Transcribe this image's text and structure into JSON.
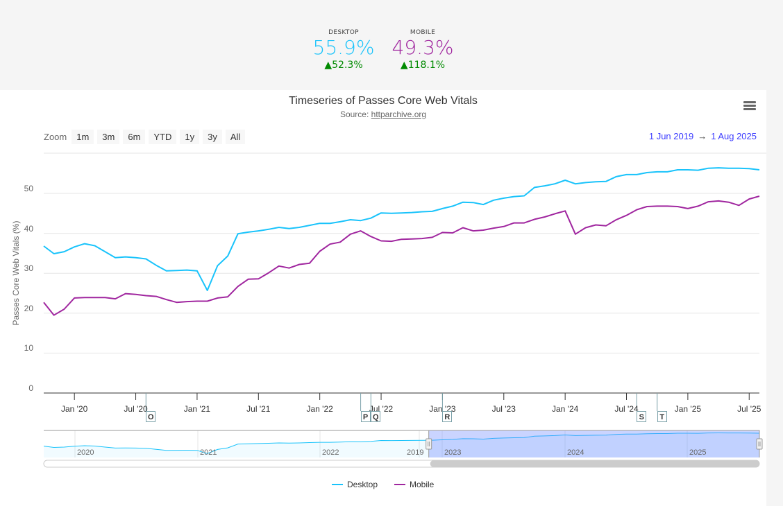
{
  "summary": {
    "desktop": {
      "label": "DESKTOP",
      "value": "55.9%",
      "change": "52.3%",
      "color": "#19c3fb"
    },
    "mobile": {
      "label": "MOBILE",
      "value": "49.3%",
      "change": "118.1%",
      "color": "#a0269f"
    },
    "change_icon": "triangle-up-icon",
    "change_color": "#008a00"
  },
  "toolbar": {
    "zoom_label": "Zoom",
    "buttons": [
      "1m",
      "3m",
      "6m",
      "YTD",
      "1y",
      "3y",
      "All"
    ],
    "range_from": "1 Jun 2019",
    "range_arrow": "→",
    "range_to": "1 Aug 2025",
    "menu_icon": "hamburger-menu-icon"
  },
  "chart_data": {
    "type": "line",
    "title": "Timeseries of Passes Core Web Vitals",
    "subtitle_prefix": "Source: ",
    "subtitle_link": "httparchive.org",
    "ylabel": "Passes Core Web Vitals (%)",
    "ylim": [
      0,
      60
    ],
    "yticks": [
      0,
      10,
      20,
      30,
      40,
      50
    ],
    "grid": true,
    "x_start": "2019-10",
    "x_end": "2025-08",
    "xticks": [
      {
        "label": "Jan '20",
        "date": "2020-01"
      },
      {
        "label": "Jul '20",
        "date": "2020-07"
      },
      {
        "label": "Jan '21",
        "date": "2021-01"
      },
      {
        "label": "Jul '21",
        "date": "2021-07"
      },
      {
        "label": "Jan '22",
        "date": "2022-01"
      },
      {
        "label": "Jul '22",
        "date": "2022-07"
      },
      {
        "label": "Jan '23",
        "date": "2023-01"
      },
      {
        "label": "Jul '23",
        "date": "2023-07"
      },
      {
        "label": "Jan '24",
        "date": "2024-01"
      },
      {
        "label": "Jul '24",
        "date": "2024-07"
      },
      {
        "label": "Jan '25",
        "date": "2025-01"
      },
      {
        "label": "Jul '25",
        "date": "2025-07"
      }
    ],
    "series": [
      {
        "name": "Desktop",
        "color": "#19c3fb",
        "values": [
          36.8,
          34.9,
          35.4,
          36.6,
          37.4,
          36.9,
          35.4,
          33.9,
          34.1,
          33.9,
          33.6,
          32.0,
          30.6,
          30.7,
          30.8,
          30.6,
          25.7,
          31.9,
          34.3,
          39.9,
          40.3,
          40.6,
          41.0,
          41.5,
          41.2,
          41.5,
          42.0,
          42.5,
          42.5,
          42.9,
          43.4,
          43.2,
          43.8,
          45.1,
          45.0,
          45.1,
          45.2,
          45.4,
          45.5,
          46.2,
          46.8,
          47.8,
          47.7,
          47.2,
          48.3,
          48.8,
          49.2,
          49.4,
          51.5,
          51.9,
          52.4,
          53.3,
          52.4,
          52.7,
          52.9,
          53.0,
          54.2,
          54.7,
          54.7,
          55.2,
          55.4,
          55.4,
          55.9,
          55.9,
          55.8,
          56.3,
          56.4,
          56.3,
          56.3,
          56.2,
          55.9
        ]
      },
      {
        "name": "Mobile",
        "color": "#a0269f",
        "values": [
          22.7,
          19.5,
          21.0,
          23.8,
          23.9,
          23.9,
          23.9,
          23.6,
          24.9,
          24.7,
          24.4,
          24.2,
          23.4,
          22.7,
          22.9,
          23.0,
          23.0,
          23.8,
          24.1,
          26.7,
          28.5,
          28.6,
          30.1,
          31.8,
          31.3,
          32.2,
          32.5,
          35.5,
          37.3,
          37.8,
          39.8,
          40.6,
          39.2,
          38.1,
          38.0,
          38.5,
          38.6,
          38.7,
          39.0,
          40.2,
          40.1,
          41.4,
          40.6,
          40.8,
          41.3,
          41.7,
          42.6,
          42.6,
          43.5,
          44.1,
          44.9,
          45.6,
          39.8,
          41.4,
          42.1,
          41.9,
          43.4,
          44.5,
          45.9,
          46.7,
          46.8,
          46.8,
          46.7,
          46.2,
          46.8,
          47.9,
          48.1,
          47.8,
          47.0,
          48.6,
          49.3
        ]
      }
    ],
    "flags": [
      {
        "label": "O",
        "date": "2020-08"
      },
      {
        "label": "P",
        "date": "2022-05"
      },
      {
        "label": "Q",
        "date": "2022-06"
      },
      {
        "label": "R",
        "date": "2023-01"
      },
      {
        "label": "S",
        "date": "2024-08"
      },
      {
        "label": "T",
        "date": "2024-10"
      }
    ],
    "navigator": {
      "labels": [
        "2020",
        "2021",
        "2022",
        "2019",
        "2023",
        "2024",
        "2025"
      ],
      "selected_from": "2022-12",
      "selected_to": "2025-08"
    },
    "legend": {
      "placement": "bottom"
    }
  }
}
